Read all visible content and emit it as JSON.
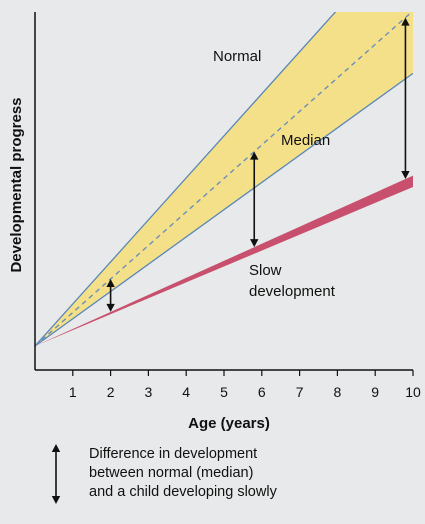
{
  "chart_data": {
    "type": "area",
    "xlabel": "Age (years)",
    "ylabel": "Developmental progress",
    "xlim": [
      0,
      10
    ],
    "x_ticks": [
      "1",
      "2",
      "3",
      "4",
      "5",
      "6",
      "7",
      "8",
      "9",
      "10"
    ],
    "y_ticks_labeled": false,
    "grid": false,
    "series": [
      {
        "name": "Normal",
        "kind": "band",
        "x": [
          0,
          10
        ],
        "upper": [
          0,
          1.48
        ],
        "lower": [
          0,
          0.96
        ],
        "color": "#f5e08a",
        "edge_color": "#5a86b8"
      },
      {
        "name": "Median",
        "kind": "line",
        "style": "dashed",
        "x": [
          0,
          10
        ],
        "y": [
          0,
          1.18
        ],
        "color": "#6a8fb8"
      },
      {
        "name": "Slow development",
        "kind": "band",
        "x": [
          0,
          10
        ],
        "upper": [
          0,
          0.6
        ],
        "lower": [
          0,
          0.56
        ],
        "color": "#c8506e"
      }
    ],
    "difference_arrows_at_age": [
      2,
      5.8,
      9.8
    ],
    "annotations": {
      "normal": "Normal",
      "median": "Median",
      "slow_line1": "Slow",
      "slow_line2": "development"
    },
    "legend": {
      "placement": "bottom-left",
      "symbol": "double-headed-arrow",
      "lines": [
        "Difference in development",
        "between normal (median)",
        "and a child developing slowly"
      ]
    }
  }
}
